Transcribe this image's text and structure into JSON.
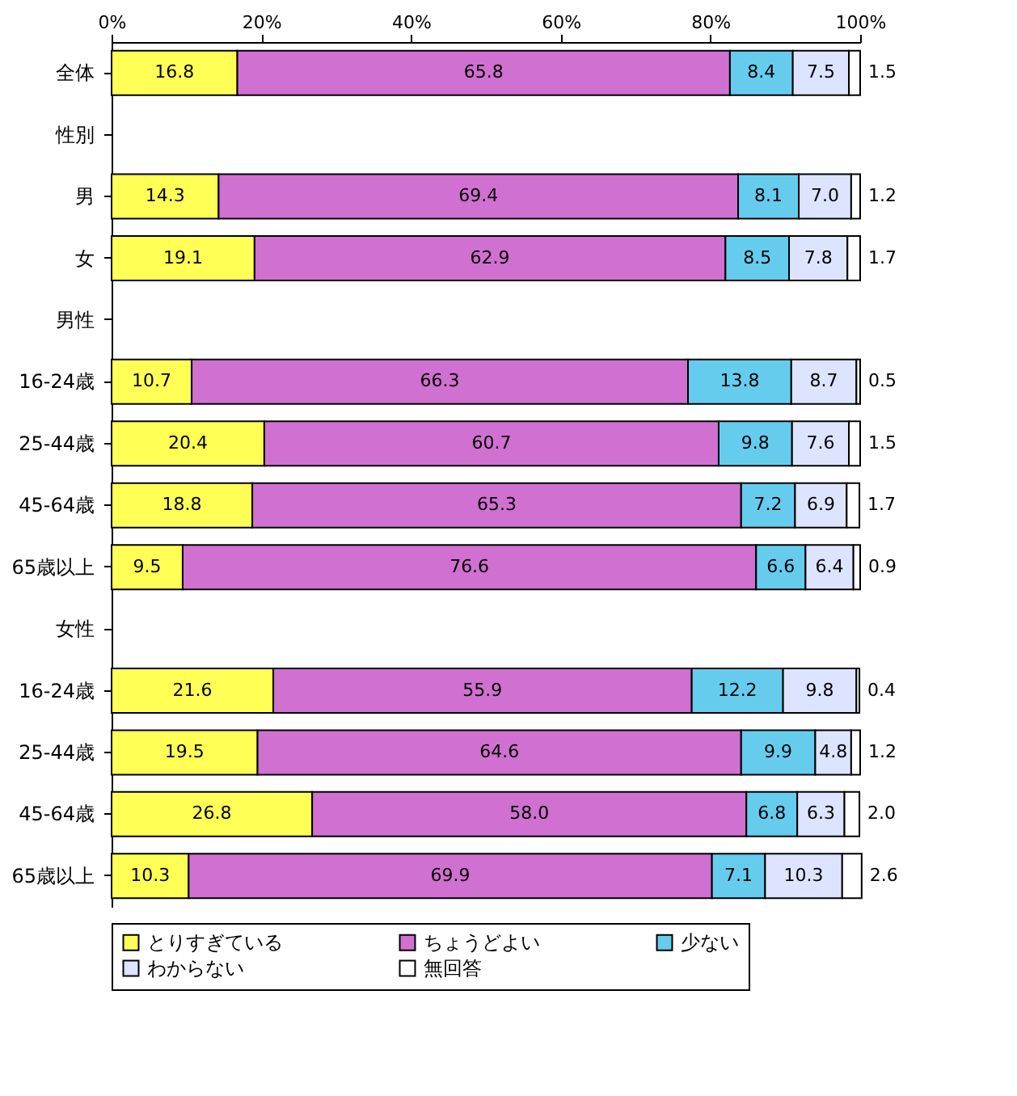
{
  "chart_data": {
    "type": "bar",
    "orientation": "horizontal",
    "stacked": true,
    "legend": "bottom",
    "grid": false,
    "categories": [
      "全体",
      "性別",
      "男",
      "女",
      "男性",
      "16-24歳",
      "25-44歳",
      "45-64歳",
      "65歳以上",
      "女性",
      "16-24歳",
      "25-44歳",
      "45-64歳",
      "65歳以上"
    ],
    "xlim": [
      0,
      100
    ],
    "xticks": [
      {
        "value": 0,
        "label": "0%"
      },
      {
        "value": 20,
        "label": "20%"
      },
      {
        "value": 40,
        "label": "40%"
      },
      {
        "value": 60,
        "label": "60%"
      },
      {
        "value": 80,
        "label": "80%"
      },
      {
        "value": 100,
        "label": "100%"
      }
    ],
    "series": [
      {
        "name": "とりすぎている",
        "color": "#ffff55",
        "values": [
          16.8,
          null,
          14.3,
          19.1,
          null,
          10.7,
          20.4,
          18.8,
          9.5,
          null,
          21.6,
          19.5,
          26.8,
          10.3
        ],
        "value_labels": [
          "16.8",
          null,
          "14.3",
          "19.1",
          null,
          "10.7",
          "20.4",
          "18.8",
          "9.5",
          null,
          "21.6",
          "19.5",
          "26.8",
          "10.3"
        ]
      },
      {
        "name": "ちょうどよい",
        "color": "#d070d0",
        "values": [
          65.8,
          null,
          69.4,
          62.9,
          null,
          66.3,
          60.7,
          65.3,
          76.6,
          null,
          55.9,
          64.6,
          58.0,
          69.9
        ],
        "value_labels": [
          "65.8",
          null,
          "69.4",
          "62.9",
          null,
          "66.3",
          "60.7",
          "65.3",
          "76.6",
          null,
          "55.9",
          "64.6",
          "58.0",
          "69.9"
        ]
      },
      {
        "name": "少ない",
        "color": "#66ccee",
        "values": [
          8.4,
          null,
          8.1,
          8.5,
          null,
          13.8,
          9.8,
          7.2,
          6.6,
          null,
          12.2,
          9.9,
          6.8,
          7.1
        ],
        "value_labels": [
          "8.4",
          null,
          "8.1",
          "8.5",
          null,
          "13.8",
          "9.8",
          "7.2",
          "6.6",
          null,
          "12.2",
          "9.9",
          "6.8",
          "7.1"
        ]
      },
      {
        "name": "わからない",
        "color": "#dde4ff",
        "values": [
          7.5,
          null,
          7.0,
          7.8,
          null,
          8.7,
          7.6,
          6.9,
          6.4,
          null,
          9.8,
          4.8,
          6.3,
          10.3
        ],
        "value_labels": [
          "7.5",
          null,
          "7.0",
          "7.8",
          null,
          "8.7",
          "7.6",
          "6.9",
          "6.4",
          null,
          "9.8",
          "4.8",
          "6.3",
          "10.3"
        ]
      },
      {
        "name": "無回答",
        "color": "#ffffff",
        "values": [
          1.5,
          null,
          1.2,
          1.7,
          null,
          0.5,
          1.5,
          1.7,
          0.9,
          null,
          0.4,
          1.2,
          2.0,
          2.6
        ],
        "value_labels": [
          "1.5",
          null,
          "1.2",
          "1.7",
          null,
          "0.5",
          "1.5",
          "1.7",
          "0.9",
          null,
          "0.4",
          "1.2",
          "2.0",
          "2.6"
        ]
      }
    ]
  }
}
